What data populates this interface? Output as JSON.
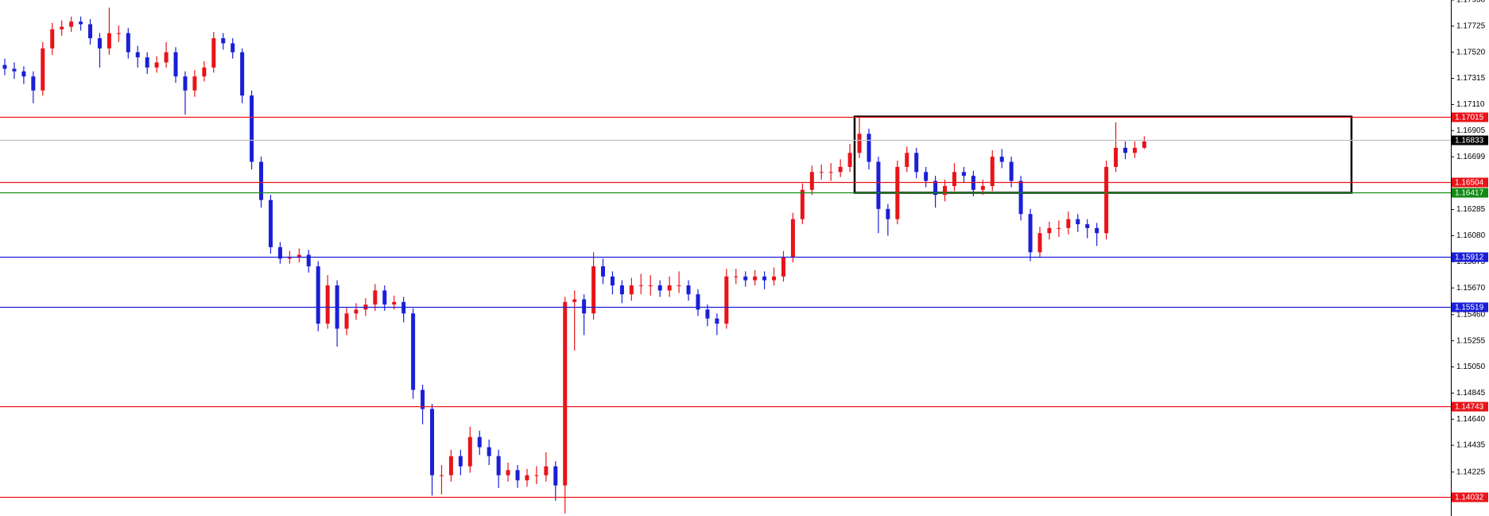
{
  "chart_data": {
    "type": "candlestick",
    "up_color": "#e8141a",
    "down_color": "#1a1fd6",
    "open": [
      1.1742,
      1.1739,
      1.1737,
      1.1733,
      1.1722,
      1.1755,
      1.177,
      1.1772,
      1.1776,
      1.1774,
      1.1763,
      1.1755,
      1.1767,
      1.1767,
      1.1752,
      1.1748,
      1.174,
      1.1744,
      1.1752,
      1.1733,
      1.1722,
      1.1733,
      1.174,
      1.1763,
      1.1759,
      1.1752,
      1.1718,
      1.1666,
      1.1636,
      1.1599,
      1.159,
      1.1591,
      1.1593,
      1.1584,
      1.1539,
      1.1569,
      1.1535,
      1.1547,
      1.155,
      1.1554,
      1.1565,
      1.1554,
      1.1556,
      1.1547,
      1.1487,
      1.1472,
      1.142,
      1.142,
      1.1435,
      1.1427,
      1.145,
      1.1442,
      1.1435,
      1.142,
      1.1424,
      1.1416,
      1.142,
      1.142,
      1.1427,
      1.1412,
      1.1556,
      1.1558,
      1.1547,
      1.1584,
      1.1576,
      1.1569,
      1.1562,
      1.1569,
      1.1569,
      1.1569,
      1.1565,
      1.1569,
      1.1569,
      1.1562,
      1.155,
      1.1543,
      1.1539,
      1.1576,
      1.1576,
      1.1573,
      1.1576,
      1.1573,
      1.1576,
      1.1591,
      1.1621,
      1.1644,
      1.1658,
      1.1658,
      1.1658,
      1.1662,
      1.1673,
      1.1688,
      1.1666,
      1.1629,
      1.1621,
      1.1662,
      1.1673,
      1.1658,
      1.1651,
      1.164,
      1.1647,
      1.1658,
      1.1655,
      1.1644,
      1.1647,
      1.167,
      1.1666,
      1.1651,
      1.1625,
      1.1595,
      1.161,
      1.1614,
      1.1614,
      1.1621,
      1.1617,
      1.1614,
      1.161,
      1.1662,
      1.1677,
      1.1673,
      1.1677
    ],
    "high": [
      1.1747,
      1.1744,
      1.1741,
      1.1737,
      1.176,
      1.1775,
      1.1777,
      1.178,
      1.178,
      1.1778,
      1.1767,
      1.1787,
      1.1773,
      1.1771,
      1.1757,
      1.1752,
      1.1749,
      1.176,
      1.1756,
      1.1737,
      1.1738,
      1.1745,
      1.1768,
      1.1767,
      1.1763,
      1.1755,
      1.1722,
      1.167,
      1.164,
      1.1603,
      1.1596,
      1.1598,
      1.1597,
      1.1588,
      1.1577,
      1.1573,
      1.1552,
      1.1555,
      1.1559,
      1.157,
      1.1569,
      1.1561,
      1.156,
      1.1551,
      1.1491,
      1.1476,
      1.1428,
      1.144,
      1.144,
      1.1458,
      1.1455,
      1.1448,
      1.144,
      1.143,
      1.1428,
      1.1425,
      1.1427,
      1.1438,
      1.1431,
      1.156,
      1.1565,
      1.1562,
      1.1595,
      1.159,
      1.158,
      1.1573,
      1.1575,
      1.1578,
      1.1577,
      1.1573,
      1.1576,
      1.158,
      1.1573,
      1.1566,
      1.1554,
      1.1547,
      1.1582,
      1.1582,
      1.158,
      1.1581,
      1.158,
      1.1583,
      1.1596,
      1.1626,
      1.1649,
      1.1663,
      1.1664,
      1.1665,
      1.1668,
      1.168,
      1.1701,
      1.1692,
      1.167,
      1.1633,
      1.1667,
      1.1678,
      1.1677,
      1.1662,
      1.1655,
      1.1652,
      1.1665,
      1.1662,
      1.1659,
      1.1652,
      1.1675,
      1.1676,
      1.167,
      1.1655,
      1.1629,
      1.1615,
      1.1619,
      1.162,
      1.1627,
      1.1625,
      1.1621,
      1.1618,
      1.1667,
      1.1697,
      1.1682,
      1.1682,
      1.1686
    ],
    "low": [
      1.1734,
      1.1731,
      1.1727,
      1.1712,
      1.1718,
      1.175,
      1.1765,
      1.1768,
      1.1769,
      1.1758,
      1.174,
      1.175,
      1.176,
      1.1747,
      1.174,
      1.1735,
      1.1736,
      1.174,
      1.1728,
      1.1703,
      1.1717,
      1.1729,
      1.1736,
      1.1754,
      1.1747,
      1.1712,
      1.166,
      1.163,
      1.1594,
      1.1586,
      1.1586,
      1.1587,
      1.1579,
      1.1533,
      1.1535,
      1.1521,
      1.153,
      1.1542,
      1.1545,
      1.1549,
      1.1549,
      1.155,
      1.154,
      1.148,
      1.146,
      1.1404,
      1.1405,
      1.1415,
      1.142,
      1.1422,
      1.1436,
      1.1428,
      1.141,
      1.1415,
      1.141,
      1.1411,
      1.1413,
      1.1415,
      1.14,
      1.139,
      1.1518,
      1.153,
      1.1542,
      1.157,
      1.1562,
      1.1555,
      1.1557,
      1.1562,
      1.1561,
      1.156,
      1.156,
      1.1563,
      1.1557,
      1.1545,
      1.1537,
      1.153,
      1.1535,
      1.157,
      1.1568,
      1.1569,
      1.1566,
      1.1569,
      1.1572,
      1.1587,
      1.1617,
      1.164,
      1.1652,
      1.1651,
      1.1654,
      1.1658,
      1.1669,
      1.166,
      1.161,
      1.1608,
      1.1617,
      1.1658,
      1.1653,
      1.1646,
      1.163,
      1.1635,
      1.1643,
      1.165,
      1.1639,
      1.164,
      1.1643,
      1.1661,
      1.1646,
      1.162,
      1.1588,
      1.1591,
      1.1605,
      1.1607,
      1.1609,
      1.1611,
      1.1606,
      1.16,
      1.1605,
      1.1658,
      1.1668,
      1.1669,
      1.1676
    ],
    "close": [
      1.1739,
      1.1737,
      1.1733,
      1.1722,
      1.1755,
      1.177,
      1.1772,
      1.1776,
      1.1774,
      1.1763,
      1.1755,
      1.1767,
      1.1767,
      1.1752,
      1.1748,
      1.174,
      1.1744,
      1.1752,
      1.1733,
      1.1722,
      1.1733,
      1.174,
      1.1763,
      1.1759,
      1.1752,
      1.1718,
      1.1666,
      1.1636,
      1.1599,
      1.159,
      1.1591,
      1.1593,
      1.1584,
      1.1539,
      1.1569,
      1.1535,
      1.1547,
      1.155,
      1.1554,
      1.1565,
      1.1554,
      1.1556,
      1.1547,
      1.1487,
      1.1472,
      1.142,
      1.142,
      1.1435,
      1.1427,
      1.145,
      1.1442,
      1.1435,
      1.142,
      1.1424,
      1.1416,
      1.142,
      1.142,
      1.1427,
      1.1412,
      1.1556,
      1.1558,
      1.1547,
      1.1584,
      1.1576,
      1.1569,
      1.1562,
      1.1569,
      1.1569,
      1.1569,
      1.1565,
      1.1569,
      1.1569,
      1.1562,
      1.155,
      1.1543,
      1.1539,
      1.1576,
      1.1576,
      1.1573,
      1.1576,
      1.1573,
      1.1576,
      1.1591,
      1.1621,
      1.1644,
      1.1658,
      1.1658,
      1.1658,
      1.1662,
      1.1673,
      1.1688,
      1.1666,
      1.1629,
      1.1621,
      1.1662,
      1.1673,
      1.1658,
      1.1651,
      1.164,
      1.1647,
      1.1658,
      1.1655,
      1.1644,
      1.1647,
      1.167,
      1.1666,
      1.1651,
      1.1625,
      1.1595,
      1.161,
      1.1614,
      1.1614,
      1.1621,
      1.1617,
      1.1614,
      1.161,
      1.1662,
      1.1677,
      1.1673,
      1.1677,
      1.1682
    ],
    "ylim": [
      1.1388,
      1.1793
    ],
    "yticks": [
      {
        "value": 1.1793,
        "label": "1.17930"
      },
      1.17725,
      {
        "value": 1.1752,
        "label": "1.17520"
      },
      1.17315,
      {
        "value": 1.1711,
        "label": "1.17110"
      },
      1.16905,
      1.16699,
      1.16285,
      {
        "value": 1.1608,
        "label": "1.16080"
      },
      1.15875,
      {
        "value": 1.1567,
        "label": "1.15670"
      },
      {
        "value": 1.1546,
        "label": "1.15460"
      },
      1.15255,
      {
        "value": 1.1505,
        "label": "1.15050"
      },
      1.14845,
      {
        "value": 1.1464,
        "label": "1.14640"
      },
      1.14435,
      1.14225
    ],
    "levels": [
      {
        "value": 1.17015,
        "color": "#e8141a"
      },
      {
        "value": 1.16833,
        "color": "#c0c0c0",
        "label_color": "#000000"
      },
      {
        "value": 1.16504,
        "color": "#e8141a"
      },
      {
        "value": 1.16417,
        "color": "#138a13"
      },
      {
        "value": 1.15912,
        "color": "#1a1fd6"
      },
      {
        "value": 1.15519,
        "color": "#1a1fd6"
      },
      {
        "value": 1.14743,
        "color": "#e8141a"
      },
      {
        "value": 1.14032,
        "color": "#e8141a"
      }
    ],
    "box": {
      "top": 1.17015,
      "bottom": 1.16417
    }
  }
}
